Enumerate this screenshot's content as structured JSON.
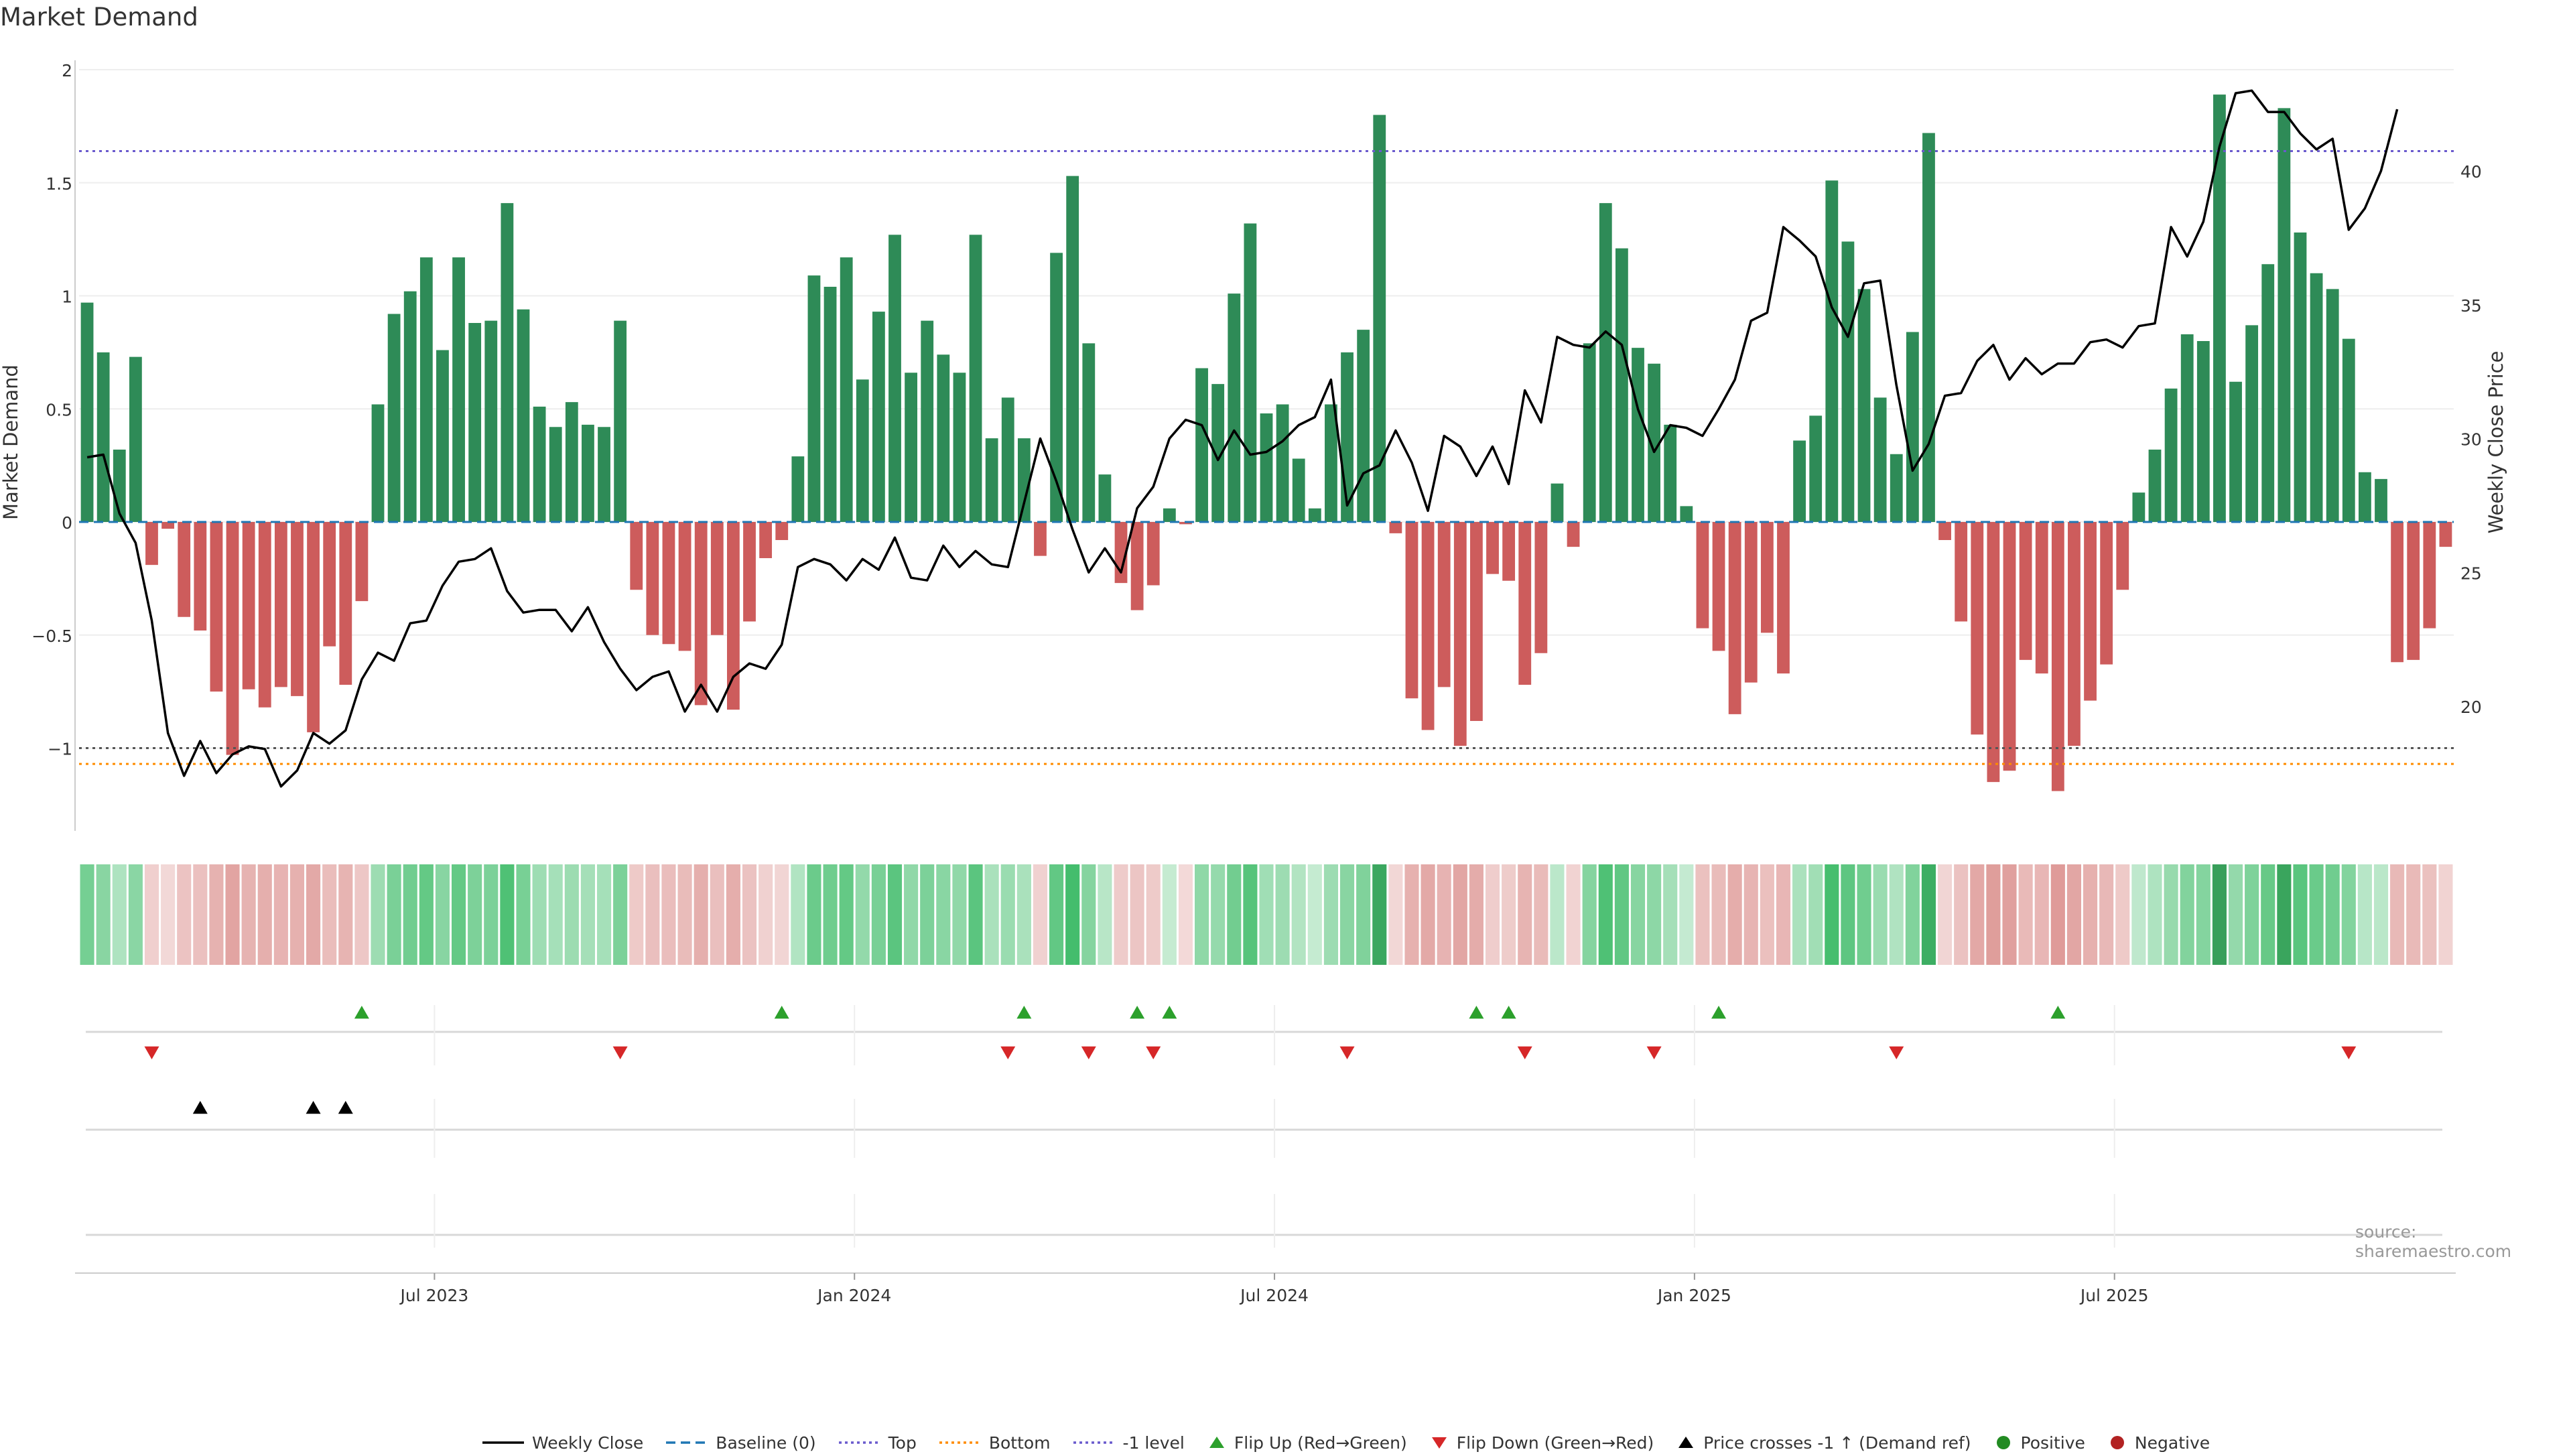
{
  "title": "Market Demand",
  "source": "source: sharemaestro.com",
  "colors": {
    "positive": "#2e8b57",
    "negative": "#cd5c5c",
    "close": "#000000",
    "baseline": "#1f77b4",
    "top": "#6a5acd",
    "bottom": "#ff8c00",
    "minus_one": "#6a5acd",
    "flip_up": "#2ca02c",
    "flip_down": "#d62728",
    "cross": "#000000",
    "grid": "#eeeeee"
  },
  "chart_data": {
    "type": "bar",
    "title": "Market Demand",
    "ylabel": "Market Demand",
    "y2label": "Weekly Close Price",
    "ylim": [
      -1.35,
      2.0
    ],
    "y2lim": [
      15.5,
      43.5
    ],
    "yticks": [
      "2",
      "1.5",
      "1",
      "0.5",
      "0",
      "−0.5",
      "−1"
    ],
    "ytick_values": [
      2,
      1.5,
      1,
      0.5,
      0,
      -0.5,
      -1
    ],
    "y2ticks": [
      "40",
      "35",
      "30",
      "25",
      "20"
    ],
    "y2tick_values": [
      40,
      35,
      30,
      25,
      20
    ],
    "xticks": [
      "Jul 2023",
      "Jan 2024",
      "Jul 2024",
      "Jan 2025",
      "Jul 2025"
    ],
    "xtick_weeks": [
      21.5,
      47.5,
      73.5,
      99.5,
      125.5
    ],
    "top_level": 1.64,
    "bottom_level": -1.07,
    "minus_one_level": -1.0,
    "demand": [
      0.97,
      0.75,
      0.32,
      0.73,
      -0.19,
      -0.03,
      -0.42,
      -0.48,
      -0.75,
      -1.03,
      -0.74,
      -0.82,
      -0.73,
      -0.77,
      -0.93,
      -0.55,
      -0.72,
      -0.35,
      0.52,
      0.92,
      1.02,
      1.17,
      0.76,
      1.17,
      0.88,
      0.89,
      1.41,
      0.94,
      0.51,
      0.42,
      0.53,
      0.43,
      0.42,
      0.89,
      -0.3,
      -0.5,
      -0.54,
      -0.57,
      -0.81,
      -0.5,
      -0.83,
      -0.44,
      -0.16,
      -0.08,
      0.29,
      1.09,
      1.04,
      1.17,
      0.63,
      0.93,
      1.27,
      0.66,
      0.89,
      0.74,
      0.66,
      1.27,
      0.37,
      0.55,
      0.37,
      -0.15,
      1.19,
      1.53,
      0.79,
      0.21,
      -0.27,
      -0.39,
      -0.28,
      0.06,
      -0.01,
      0.68,
      0.61,
      1.01,
      1.32,
      0.48,
      0.52,
      0.28,
      0.06,
      0.52,
      0.75,
      0.85,
      1.8,
      -0.05,
      -0.78,
      -0.92,
      -0.73,
      -0.99,
      -0.88,
      -0.23,
      -0.26,
      -0.72,
      -0.58,
      0.17,
      -0.11,
      0.79,
      1.41,
      1.21,
      0.77,
      0.7,
      0.43,
      0.07,
      -0.47,
      -0.57,
      -0.85,
      -0.71,
      -0.49,
      -0.67,
      0.36,
      0.47,
      1.51,
      1.24,
      1.03,
      0.55,
      0.3,
      0.84,
      1.72,
      -0.08,
      -0.44,
      -0.94,
      -1.15,
      -1.1,
      -0.61,
      -0.67,
      -1.19,
      -0.99,
      -0.79,
      -0.63,
      -0.3,
      0.13,
      0.32,
      0.59,
      0.83,
      0.8,
      1.89,
      0.62,
      0.87,
      1.14,
      1.83,
      1.28,
      1.1,
      1.03,
      0.81,
      0.22,
      0.19,
      -0.62,
      -0.61,
      -0.47,
      -0.11
    ],
    "weekly_close": [
      29.3,
      29.4,
      27.2,
      26.1,
      23.2,
      19.0,
      17.4,
      18.7,
      17.5,
      18.2,
      18.5,
      18.4,
      17.0,
      17.6,
      19.0,
      18.6,
      19.1,
      21.0,
      22.0,
      21.7,
      23.1,
      23.2,
      24.5,
      25.4,
      25.5,
      25.9,
      24.3,
      23.5,
      23.6,
      23.6,
      22.8,
      23.7,
      22.4,
      21.4,
      20.6,
      21.1,
      21.3,
      19.8,
      20.8,
      19.8,
      21.1,
      21.6,
      21.4,
      22.3,
      25.2,
      25.5,
      25.3,
      24.7,
      25.5,
      25.1,
      26.3,
      24.8,
      24.7,
      26.0,
      25.2,
      25.8,
      25.3,
      25.2,
      27.6,
      30.0,
      28.4,
      26.6,
      25.0,
      25.9,
      25.0,
      27.4,
      28.2,
      30.0,
      30.7,
      30.5,
      29.2,
      30.3,
      29.4,
      29.5,
      29.9,
      30.5,
      30.8,
      32.2,
      27.5,
      28.7,
      29.0,
      30.3,
      29.1,
      27.3,
      30.1,
      29.7,
      28.6,
      29.7,
      28.3,
      31.8,
      30.6,
      33.8,
      33.5,
      33.4,
      34.0,
      33.5,
      31.1,
      29.5,
      30.5,
      30.4,
      30.1,
      31.1,
      32.2,
      34.4,
      34.7,
      37.9,
      37.4,
      36.8,
      34.9,
      33.8,
      35.8,
      35.9,
      32.0,
      28.8,
      29.8,
      31.6,
      31.7,
      32.9,
      33.5,
      32.2,
      33.0,
      32.4,
      32.8,
      32.8,
      33.6,
      33.7,
      33.4,
      34.2,
      34.3,
      37.9,
      36.8,
      38.1,
      40.9,
      42.9,
      43.0,
      42.2,
      42.2,
      41.4,
      40.8,
      41.2,
      37.8,
      38.6,
      40.0,
      42.3
    ],
    "flip_up_weeks": [
      17,
      43,
      58,
      65,
      67,
      86,
      88,
      101,
      122
    ],
    "flip_down_weeks": [
      4,
      33,
      57,
      62,
      66,
      78,
      89,
      97,
      112,
      140
    ],
    "price_cross_weeks": [
      7,
      14,
      16
    ]
  },
  "legend": [
    {
      "label": "Weekly Close",
      "icon": "solid-line",
      "color": "#000000"
    },
    {
      "label": "Baseline (0)",
      "icon": "dashed-line",
      "color": "#1f77b4"
    },
    {
      "label": "Top",
      "icon": "dotted-line",
      "color": "#6a5acd"
    },
    {
      "label": "Bottom",
      "icon": "dotted-line",
      "color": "#ff8c00"
    },
    {
      "label": "-1 level",
      "icon": "dotted-line",
      "color": "#6a5acd"
    },
    {
      "label": "Flip Up (Red→Green)",
      "icon": "triangle-up",
      "color": "#2ca02c"
    },
    {
      "label": "Flip Down (Green→Red)",
      "icon": "triangle-down",
      "color": "#d62728"
    },
    {
      "label": "Price crosses -1 ↑ (Demand ref)",
      "icon": "triangle-up",
      "color": "#000000"
    },
    {
      "label": "Positive",
      "icon": "dot",
      "color": "#228b22"
    },
    {
      "label": "Negative",
      "icon": "dot",
      "color": "#b22222"
    }
  ]
}
